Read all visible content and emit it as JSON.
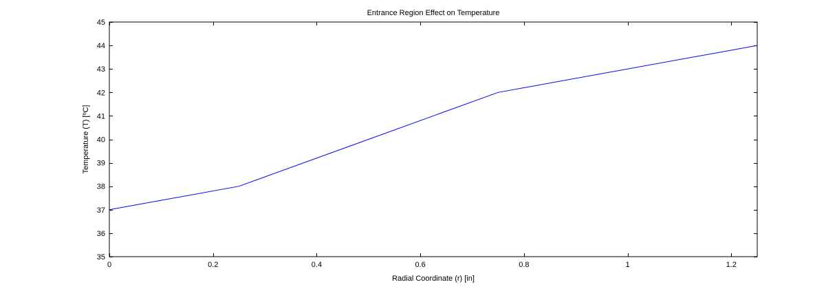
{
  "chart_data": {
    "type": "line",
    "title": "Entrance Region Effect on Temperature",
    "xlabel": "Radial Coordinate (r) [in]",
    "ylabel": "Temperature (T) [ºC]",
    "xlim": [
      0,
      1.25
    ],
    "ylim": [
      35,
      45
    ],
    "xticks": [
      0,
      0.2,
      0.4,
      0.6,
      0.8,
      1,
      1.2
    ],
    "yticks": [
      35,
      36,
      37,
      38,
      39,
      40,
      41,
      42,
      43,
      44,
      45
    ],
    "grid": false,
    "series": [
      {
        "color": "#0000ff",
        "x": [
          0,
          0.25,
          0.75,
          1.25
        ],
        "y": [
          37,
          38,
          42,
          44
        ]
      }
    ]
  }
}
